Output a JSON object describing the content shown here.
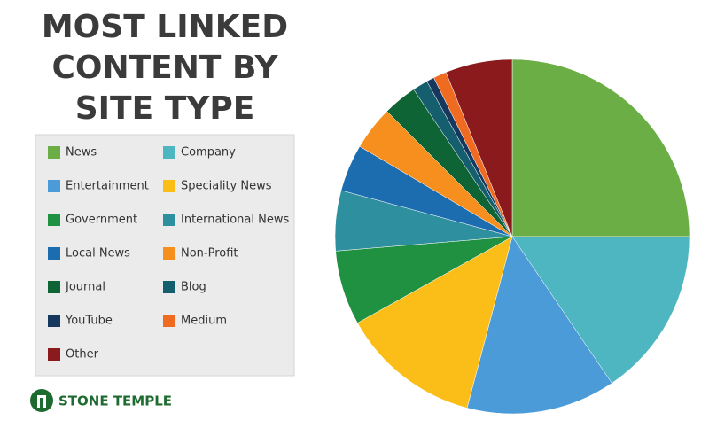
{
  "chart_data": {
    "type": "pie",
    "title_lines": [
      "MOST LINKED",
      "CONTENT BY",
      "SITE TYPE"
    ],
    "categories": [
      "News",
      "Company",
      "Entertainment",
      "Speciality News",
      "Government",
      "International News",
      "Local News",
      "Non-Profit",
      "Journal",
      "Blog",
      "YouTube",
      "Medium",
      "Other"
    ],
    "values": [
      25,
      15.5,
      13.6,
      12.8,
      6.8,
      5.5,
      4.3,
      4,
      3.1,
      1.4,
      0.7,
      1.2,
      6.1
    ],
    "colors": [
      "#6aae45",
      "#4db6c1",
      "#4a9bd8",
      "#fbbd18",
      "#1f9141",
      "#2e8f9f",
      "#1c6cb0",
      "#f78f1e",
      "#0e6434",
      "#155e6e",
      "#16375e",
      "#ef6b22",
      "#8b1a1c"
    ],
    "start_angle": "top",
    "direction": "clockwise",
    "legend": "left"
  },
  "logo": {
    "text": "STONE TEMPLE"
  }
}
